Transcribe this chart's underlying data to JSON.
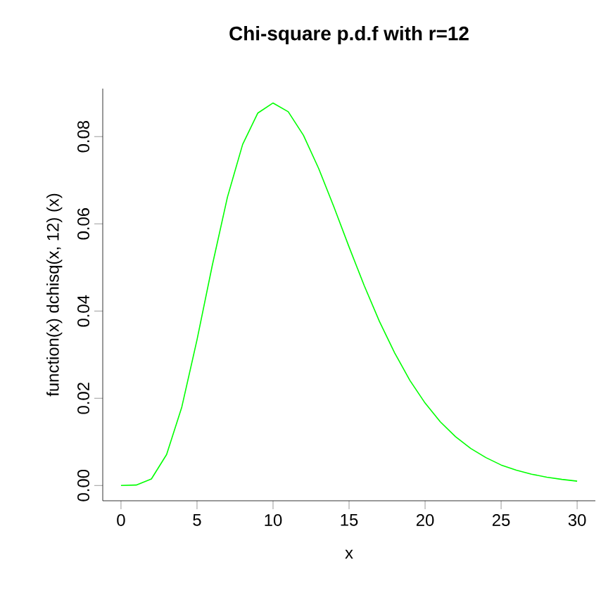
{
  "chart_data": {
    "type": "line",
    "title": "Chi-square p.d.f with r=12",
    "xlabel": "x",
    "ylabel": "function(x) dchisq(x, 12) (x)",
    "x": [
      0,
      1,
      2,
      3,
      4,
      5,
      6,
      7,
      8,
      9,
      10,
      11,
      12,
      13,
      14,
      15,
      16,
      17,
      18,
      19,
      20,
      21,
      22,
      23,
      24,
      25,
      26,
      27,
      28,
      29,
      30
    ],
    "values": [
      0,
      0.0001,
      0.0015,
      0.0071,
      0.018,
      0.0334,
      0.0504,
      0.0661,
      0.0782,
      0.0854,
      0.0877,
      0.0857,
      0.0803,
      0.0727,
      0.0639,
      0.0547,
      0.0458,
      0.0376,
      0.0304,
      0.0241,
      0.0189,
      0.0146,
      0.0112,
      0.0085,
      0.0064,
      0.0047,
      0.0035,
      0.0026,
      0.0019,
      0.0014,
      0.001
    ],
    "color": "#00ff00",
    "xlim": [
      -1.2,
      31.2
    ],
    "ylim": [
      -0.0035,
      0.091
    ],
    "xticks": [
      0,
      5,
      10,
      15,
      20,
      25,
      30
    ],
    "yticks": [
      {
        "value": 0,
        "label": "0.00"
      },
      {
        "value": 0.02,
        "label": "0.02"
      },
      {
        "value": 0.04,
        "label": "0.04"
      },
      {
        "value": 0.06,
        "label": "0.06"
      },
      {
        "value": 0.08,
        "label": "0.08"
      }
    ]
  }
}
